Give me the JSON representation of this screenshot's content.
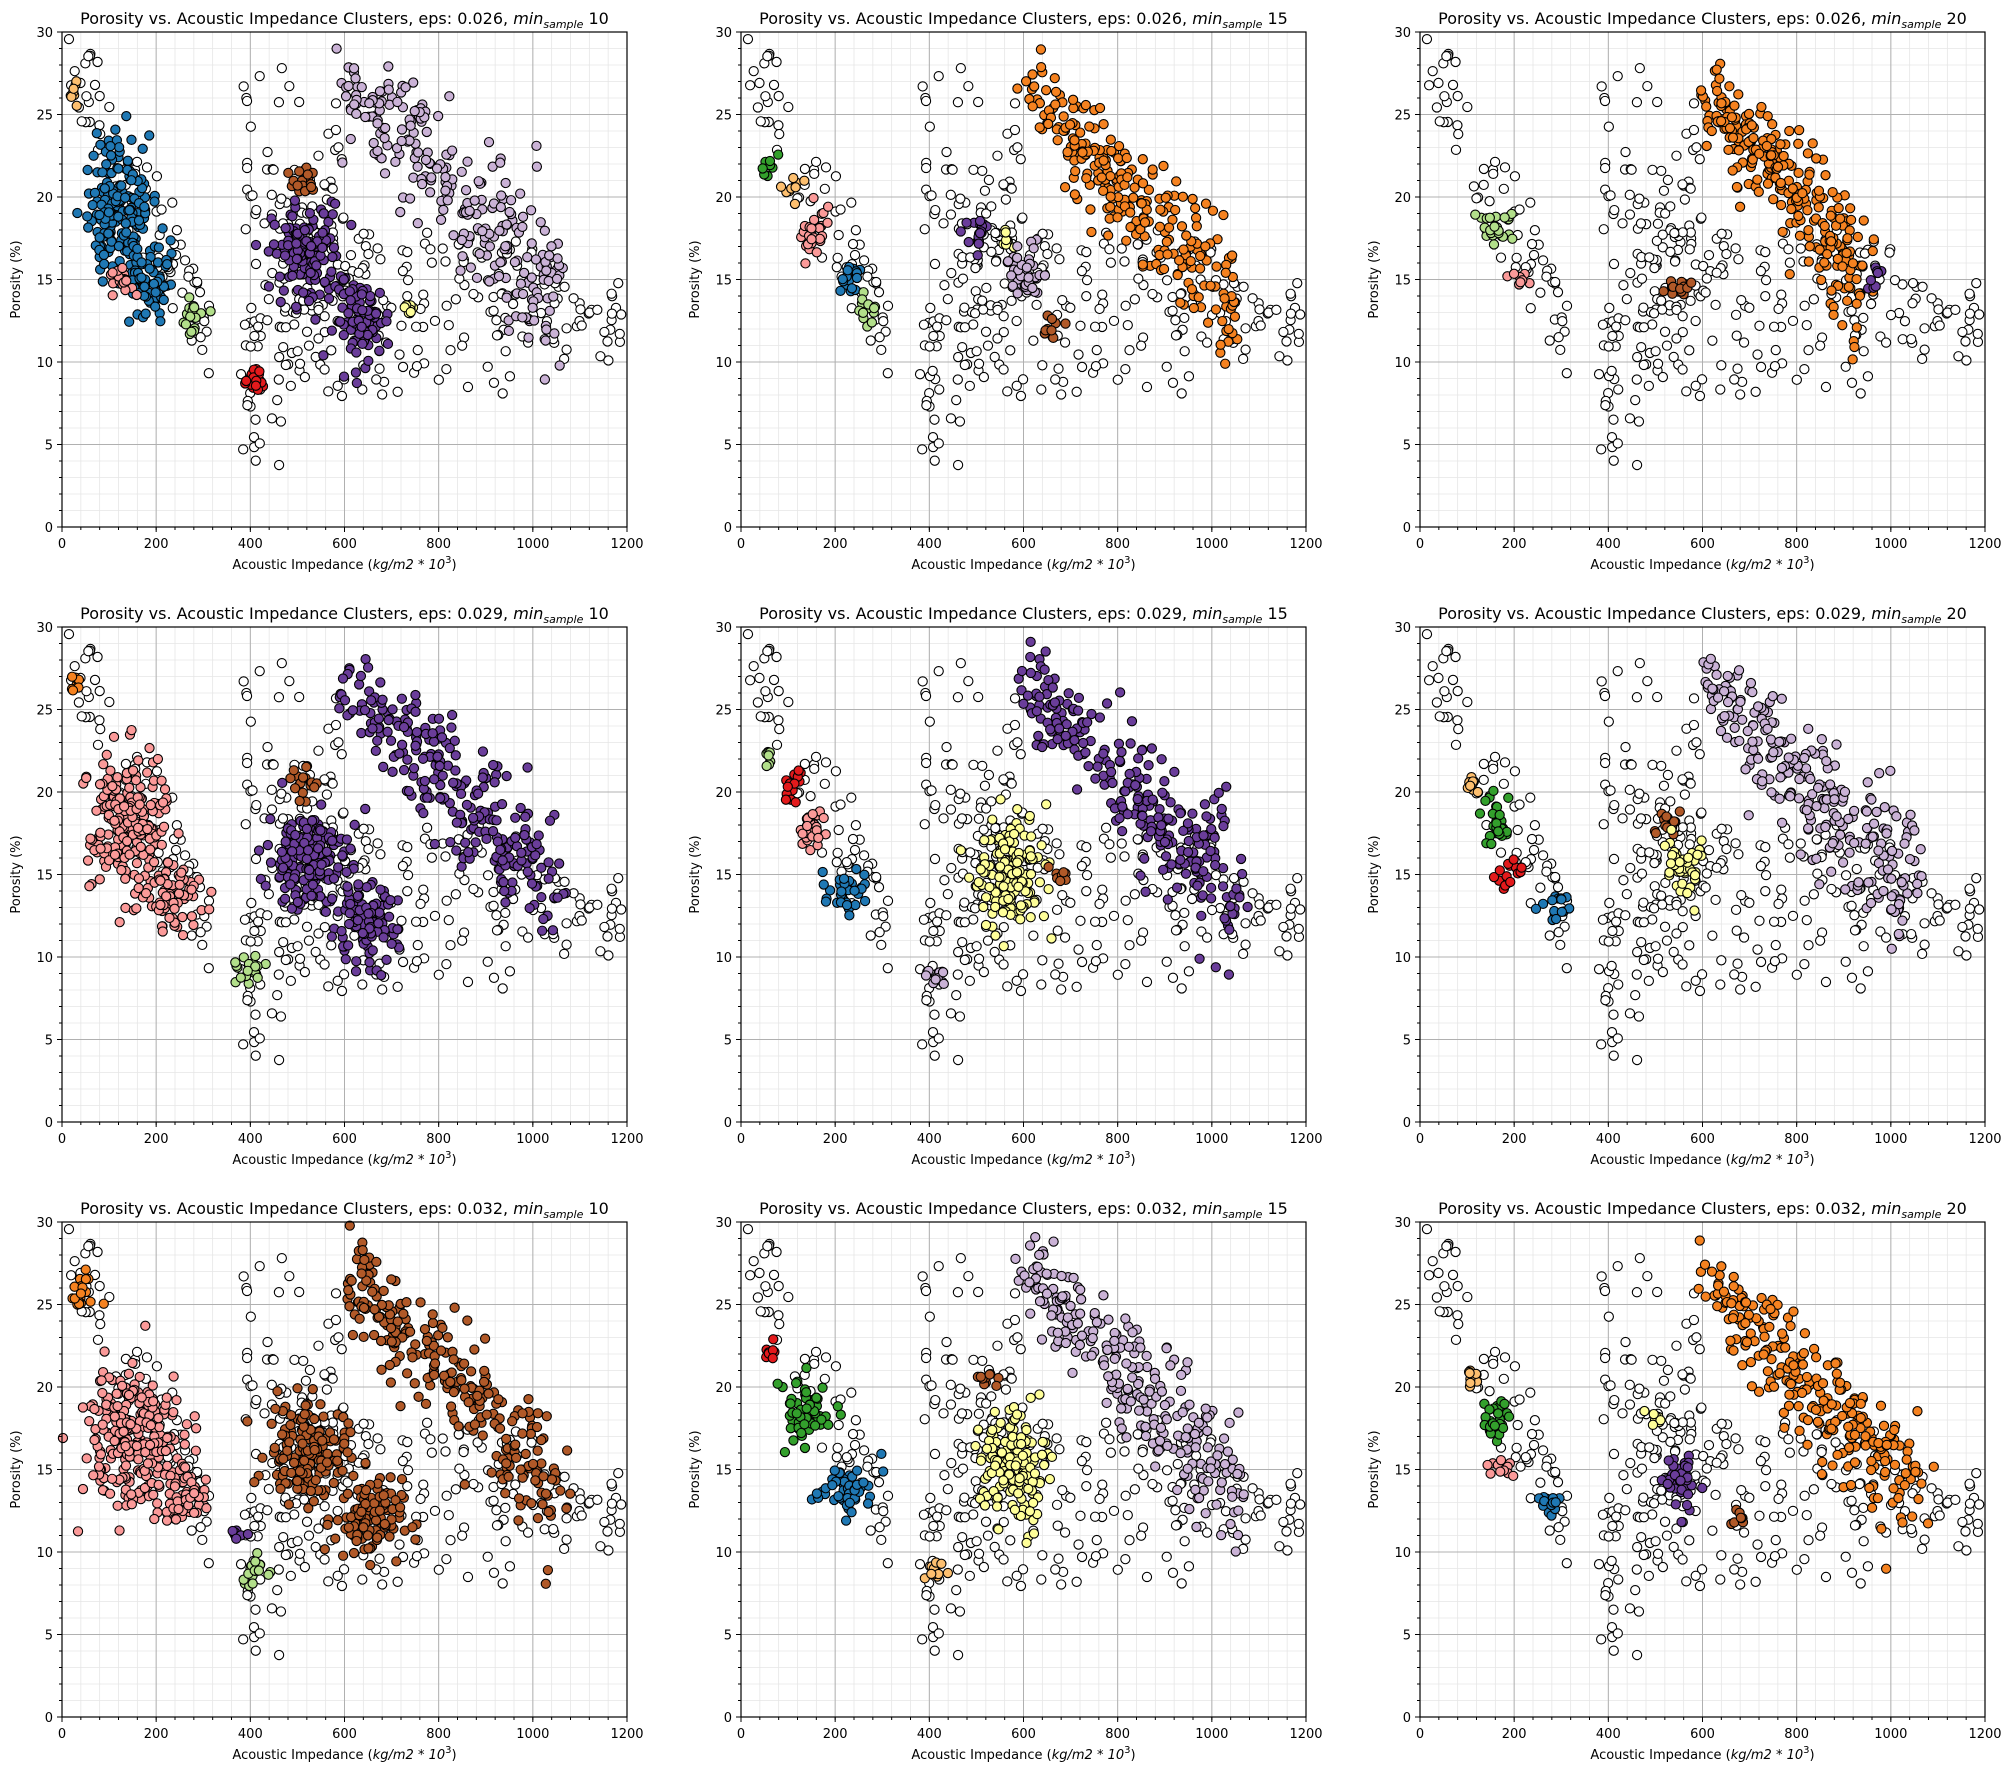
{
  "figure": {
    "rows": 3,
    "cols": 3
  },
  "axis_text": {
    "xlabel_main": "Acoustic Impedance (",
    "xlabel_unit": "kg/m2 * 10",
    "xlabel_exp": "3",
    "xlabel_close": ")",
    "ylabel": "Porosity (%)"
  },
  "title_parts": {
    "prefix": "Porosity vs. Acoustic Impedance Clusters, eps: ",
    "min": "min",
    "sample": "sample"
  },
  "colors": {
    "noise": "#ffffff",
    "orange": "#f58220",
    "lightorange": "#fdbf6f",
    "blue": "#1f78b4",
    "lightgreen": "#b2df8a",
    "green": "#33a02c",
    "red": "#e31a1c",
    "pink": "#fb9a99",
    "purple": "#6a3d9a",
    "lightpurple": "#cab2d6",
    "yellow": "#ffff99",
    "brown": "#b15928"
  },
  "chart_data": [
    {
      "type": "scatter",
      "title_eps": "0.026",
      "title_min": "10",
      "xlim": [
        0,
        1200
      ],
      "ylim": [
        0,
        30
      ],
      "xticks": [
        0,
        200,
        400,
        600,
        800,
        1000,
        1200
      ],
      "yticks": [
        0,
        5,
        10,
        15,
        20,
        25,
        30
      ],
      "grid": true,
      "clusters": [
        {
          "color": "lightorange",
          "region": [
            [
              30,
              26.3,
              12,
              0.6
            ]
          ]
        },
        {
          "color": "blue",
          "region": [
            [
              120,
              19,
              60,
              3.5
            ],
            [
              190,
              15,
              40,
              1.8
            ]
          ]
        },
        {
          "color": "pink",
          "region": [
            [
              130,
              14.8,
              25,
              0.8
            ]
          ]
        },
        {
          "color": "lightgreen",
          "region": [
            [
              275,
              12.8,
              25,
              0.8
            ]
          ]
        },
        {
          "color": "red",
          "region": [
            [
              410,
              9,
              25,
              0.8
            ]
          ]
        },
        {
          "color": "brown",
          "region": [
            [
              510,
              21,
              25,
              0.8
            ]
          ]
        },
        {
          "color": "purple",
          "region": [
            [
              520,
              16.5,
              60,
              2.5
            ],
            [
              640,
              12.5,
              50,
              2
            ]
          ]
        },
        {
          "color": "lightpurple",
          "region": [
            [
              "band",
              600,
              27,
              1050,
              14,
              2
            ]
          ]
        },
        {
          "color": "yellow",
          "region": [
            [
              740,
              13.4,
              15,
              0.6
            ]
          ]
        }
      ]
    },
    {
      "type": "scatter",
      "title_eps": "0.026",
      "title_min": "15",
      "xlim": [
        0,
        1200
      ],
      "ylim": [
        0,
        30
      ],
      "xticks": [
        0,
        200,
        400,
        600,
        800,
        1000,
        1200
      ],
      "yticks": [
        0,
        5,
        10,
        15,
        20,
        25,
        30
      ],
      "grid": true,
      "clusters": [
        {
          "color": "green",
          "region": [
            [
              60,
              22,
              15,
              0.7
            ]
          ]
        },
        {
          "color": "lightorange",
          "region": [
            [
              110,
              20.5,
              15,
              0.7
            ]
          ]
        },
        {
          "color": "pink",
          "region": [
            [
              150,
              18,
              25,
              1.2
            ]
          ]
        },
        {
          "color": "blue",
          "region": [
            [
              230,
              15,
              25,
              0.8
            ]
          ]
        },
        {
          "color": "lightgreen",
          "region": [
            [
              270,
              13,
              20,
              0.8
            ]
          ]
        },
        {
          "color": "purple",
          "region": [
            [
              500,
              17.8,
              25,
              0.8
            ]
          ]
        },
        {
          "color": "yellow",
          "region": [
            [
              565,
              17.5,
              10,
              0.5
            ]
          ]
        },
        {
          "color": "lightpurple",
          "region": [
            [
              600,
              15.5,
              35,
              1.5
            ]
          ]
        },
        {
          "color": "brown",
          "region": [
            [
              660,
              12,
              20,
              0.6
            ]
          ]
        },
        {
          "color": "orange",
          "region": [
            [
              "band",
              600,
              26.5,
              1050,
              13.8,
              1.8
            ]
          ]
        }
      ]
    },
    {
      "type": "scatter",
      "title_eps": "0.026",
      "title_min": "20",
      "xlim": [
        0,
        1200
      ],
      "ylim": [
        0,
        30
      ],
      "xticks": [
        0,
        200,
        400,
        600,
        800,
        1000,
        1200
      ],
      "yticks": [
        0,
        5,
        10,
        15,
        20,
        25,
        30
      ],
      "grid": true,
      "clusters": [
        {
          "color": "lightgreen",
          "region": [
            [
              160,
              18,
              30,
              1
            ]
          ]
        },
        {
          "color": "pink",
          "region": [
            [
              210,
              15,
              15,
              0.5
            ]
          ]
        },
        {
          "color": "brown",
          "region": [
            [
              550,
              14.4,
              20,
              0.7
            ]
          ]
        },
        {
          "color": "orange",
          "region": [
            [
              "band",
              600,
              26.5,
              940,
              15.5,
              1.8
            ]
          ]
        },
        {
          "color": "purple",
          "region": [
            [
              960,
              15.2,
              15,
              0.6
            ]
          ]
        }
      ]
    },
    {
      "type": "scatter",
      "title_eps": "0.029",
      "title_min": "10",
      "xlim": [
        0,
        1200
      ],
      "ylim": [
        0,
        30
      ],
      "xticks": [
        0,
        200,
        400,
        600,
        800,
        1000,
        1200
      ],
      "yticks": [
        0,
        5,
        10,
        15,
        20,
        25,
        30
      ],
      "grid": true,
      "clusters": [
        {
          "color": "orange",
          "region": [
            [
              30,
              26.3,
              12,
              0.6
            ]
          ]
        },
        {
          "color": "pink",
          "region": [
            [
              140,
              18,
              70,
              3.5
            ],
            [
              240,
              13.5,
              50,
              1.5
            ]
          ]
        },
        {
          "color": "lightgreen",
          "region": [
            [
              400,
              9,
              25,
              0.8
            ]
          ]
        },
        {
          "color": "brown",
          "region": [
            [
              510,
              20.5,
              25,
              0.8
            ]
          ]
        },
        {
          "color": "purple",
          "region": [
            [
              "band",
              600,
              27,
              1050,
              14,
              2
            ],
            [
              520,
              16,
              70,
              2.5
            ],
            [
              640,
              12,
              60,
              2
            ]
          ]
        }
      ]
    },
    {
      "type": "scatter",
      "title_eps": "0.029",
      "title_min": "15",
      "xlim": [
        0,
        1200
      ],
      "ylim": [
        0,
        30
      ],
      "xticks": [
        0,
        200,
        400,
        600,
        800,
        1000,
        1200
      ],
      "yticks": [
        0,
        5,
        10,
        15,
        20,
        25,
        30
      ],
      "grid": true,
      "clusters": [
        {
          "color": "lightgreen",
          "region": [
            [
              60,
              22.3,
              12,
              0.6
            ]
          ]
        },
        {
          "color": "red",
          "region": [
            [
              110,
              20.5,
              20,
              0.8
            ]
          ]
        },
        {
          "color": "pink",
          "region": [
            [
              150,
              18,
              25,
              1.2
            ]
          ]
        },
        {
          "color": "blue",
          "region": [
            [
              220,
              14,
              35,
              1
            ]
          ]
        },
        {
          "color": "lightpurple",
          "region": [
            [
              410,
              9,
              20,
              0.6
            ]
          ]
        },
        {
          "color": "yellow",
          "region": [
            [
              570,
              15,
              60,
              2.8
            ]
          ]
        },
        {
          "color": "brown",
          "region": [
            [
              680,
              15,
              15,
              0.5
            ]
          ]
        },
        {
          "color": "purple",
          "region": [
            [
              "band",
              600,
              26.8,
              1050,
              14,
              1.9
            ]
          ]
        }
      ]
    },
    {
      "type": "scatter",
      "title_eps": "0.029",
      "title_min": "20",
      "xlim": [
        0,
        1200
      ],
      "ylim": [
        0,
        30
      ],
      "xticks": [
        0,
        200,
        400,
        600,
        800,
        1000,
        1200
      ],
      "yticks": [
        0,
        5,
        10,
        15,
        20,
        25,
        30
      ],
      "grid": true,
      "clusters": [
        {
          "color": "lightorange",
          "region": [
            [
              110,
              20.5,
              15,
              0.6
            ]
          ]
        },
        {
          "color": "green",
          "region": [
            [
              160,
              18,
              25,
              1.2
            ]
          ]
        },
        {
          "color": "red",
          "region": [
            [
              190,
              15,
              25,
              0.7
            ]
          ]
        },
        {
          "color": "blue",
          "region": [
            [
              290,
              13,
              20,
              0.8
            ]
          ]
        },
        {
          "color": "brown",
          "region": [
            [
              530,
              18,
              25,
              0.6
            ]
          ]
        },
        {
          "color": "yellow",
          "region": [
            [
              560,
              15.5,
              35,
              1.5
            ]
          ]
        },
        {
          "color": "lightpurple",
          "region": [
            [
              "band",
              600,
              27,
              1050,
              14,
              2
            ]
          ]
        }
      ]
    },
    {
      "type": "scatter",
      "title_eps": "0.032",
      "title_min": "10",
      "xlim": [
        0,
        1200
      ],
      "ylim": [
        0,
        30
      ],
      "xticks": [
        0,
        200,
        400,
        600,
        800,
        1000,
        1200
      ],
      "yticks": [
        0,
        5,
        10,
        15,
        20,
        25,
        30
      ],
      "grid": true,
      "clusters": [
        {
          "color": "orange",
          "region": [
            [
              40,
              25.8,
              20,
              1
            ]
          ]
        },
        {
          "color": "pink",
          "region": [
            [
              150,
              17,
              80,
              3.5
            ],
            [
              260,
              13.5,
              50,
              1.5
            ]
          ]
        },
        {
          "color": "purple",
          "region": [
            [
              370,
              11.2,
              15,
              0.5
            ]
          ]
        },
        {
          "color": "lightgreen",
          "region": [
            [
              410,
              9,
              25,
              0.8
            ]
          ]
        },
        {
          "color": "brown",
          "region": [
            [
              "band",
              600,
              27,
              1050,
              14,
              2
            ],
            [
              520,
              16,
              70,
              2.5
            ],
            [
              650,
              12,
              60,
              2
            ]
          ]
        }
      ]
    },
    {
      "type": "scatter",
      "title_eps": "0.032",
      "title_min": "15",
      "xlim": [
        0,
        1200
      ],
      "ylim": [
        0,
        30
      ],
      "xticks": [
        0,
        200,
        400,
        600,
        800,
        1000,
        1200
      ],
      "yticks": [
        0,
        5,
        10,
        15,
        20,
        25,
        30
      ],
      "grid": true,
      "clusters": [
        {
          "color": "red",
          "region": [
            [
              60,
              22.3,
              12,
              0.6
            ]
          ]
        },
        {
          "color": "green",
          "region": [
            [
              140,
              18.5,
              40,
              1.8
            ]
          ]
        },
        {
          "color": "blue",
          "region": [
            [
              220,
              14,
              50,
              1.2
            ]
          ]
        },
        {
          "color": "lightorange",
          "region": [
            [
              410,
              9,
              20,
              0.6
            ]
          ]
        },
        {
          "color": "brown",
          "region": [
            [
              520,
              20.5,
              20,
              0.6
            ]
          ]
        },
        {
          "color": "yellow",
          "region": [
            [
              580,
              15,
              60,
              2.8
            ]
          ]
        },
        {
          "color": "lightpurple",
          "region": [
            [
              "band",
              600,
              26.8,
              1050,
              14,
              1.9
            ]
          ]
        }
      ]
    },
    {
      "type": "scatter",
      "title_eps": "0.032",
      "title_min": "20",
      "xlim": [
        0,
        1200
      ],
      "ylim": [
        0,
        30
      ],
      "xticks": [
        0,
        200,
        400,
        600,
        800,
        1000,
        1200
      ],
      "yticks": [
        0,
        5,
        10,
        15,
        20,
        25,
        30
      ],
      "grid": true,
      "clusters": [
        {
          "color": "lightorange",
          "region": [
            [
              110,
              20.5,
              15,
              0.7
            ]
          ]
        },
        {
          "color": "green",
          "region": [
            [
              160,
              18,
              25,
              1.2
            ]
          ]
        },
        {
          "color": "pink",
          "region": [
            [
              170,
              15,
              25,
              0.5
            ]
          ]
        },
        {
          "color": "blue",
          "region": [
            [
              270,
              13,
              20,
              0.7
            ]
          ]
        },
        {
          "color": "yellow",
          "region": [
            [
              500,
              18,
              20,
              0.5
            ]
          ]
        },
        {
          "color": "purple",
          "region": [
            [
              550,
              14.5,
              30,
              1.5
            ]
          ]
        },
        {
          "color": "brown",
          "region": [
            [
              680,
              12,
              15,
              0.4
            ]
          ]
        },
        {
          "color": "orange",
          "region": [
            [
              "band",
              600,
              26.5,
              1050,
              13.5,
              1.9
            ]
          ]
        }
      ]
    }
  ]
}
